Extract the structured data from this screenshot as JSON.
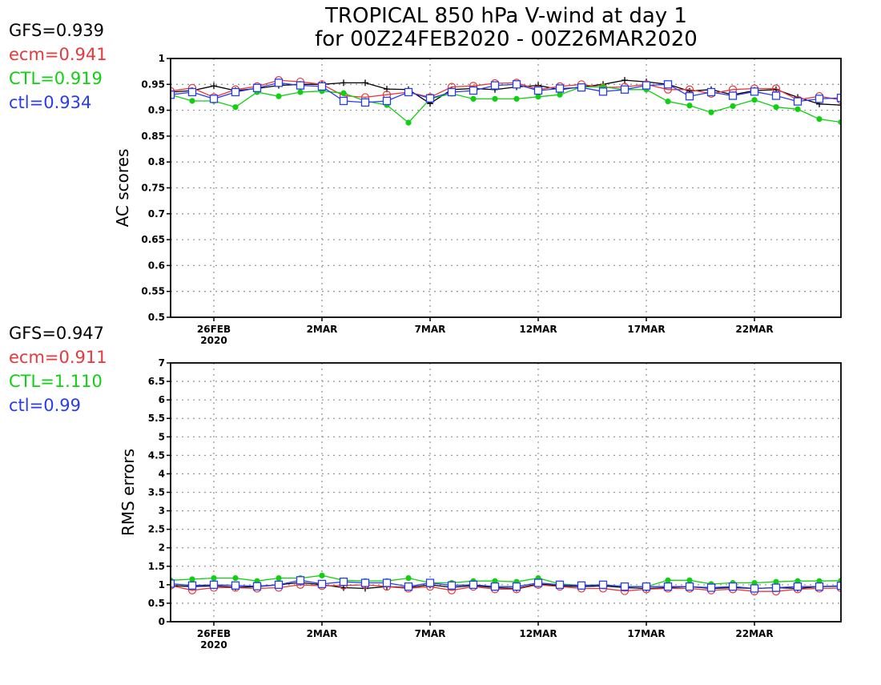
{
  "title_line1": "TROPICAL 850 hPa V-wind at day 1",
  "title_line2": "for 00Z24FEB2020 - 00Z26MAR2020",
  "colors": {
    "GFS": "#000000",
    "ecm": "#e8383b",
    "CTL": "#10d010",
    "ctl": "#2a3cf0"
  },
  "chart_data": [
    {
      "type": "line",
      "ylabel": "AC scores",
      "ylim": [
        0.5,
        1
      ],
      "yticks": [
        "0.5",
        "0.55",
        "0.6",
        "0.65",
        "0.7",
        "0.75",
        "0.8",
        "0.85",
        "0.9",
        "0.95",
        "1"
      ],
      "xlim": [
        "2020-02-24",
        "2020-03-26"
      ],
      "xticks": [
        {
          "date": "2020-02-26",
          "label": "26FEB",
          "year": "2020"
        },
        {
          "date": "2020-03-02",
          "label": "2MAR",
          "year": ""
        },
        {
          "date": "2020-03-07",
          "label": "7MAR",
          "year": ""
        },
        {
          "date": "2020-03-12",
          "label": "12MAR",
          "year": ""
        },
        {
          "date": "2020-03-17",
          "label": "17MAR",
          "year": ""
        },
        {
          "date": "2020-03-22",
          "label": "22MAR",
          "year": ""
        }
      ],
      "grid": true,
      "scores": [
        {
          "name": "GFS",
          "label": "GFS=0.939"
        },
        {
          "name": "ecm",
          "label": "ecm=0.941"
        },
        {
          "name": "CTL",
          "label": "CTL=0.919"
        },
        {
          "name": "ctl",
          "label": "ctl=0.934"
        }
      ],
      "x": [
        "2020-02-24",
        "2020-02-25",
        "2020-02-26",
        "2020-02-27",
        "2020-02-28",
        "2020-02-29",
        "2020-03-01",
        "2020-03-02",
        "2020-03-03",
        "2020-03-04",
        "2020-03-05",
        "2020-03-06",
        "2020-03-07",
        "2020-03-08",
        "2020-03-09",
        "2020-03-10",
        "2020-03-11",
        "2020-03-12",
        "2020-03-13",
        "2020-03-14",
        "2020-03-15",
        "2020-03-16",
        "2020-03-17",
        "2020-03-18",
        "2020-03-19",
        "2020-03-20",
        "2020-03-21",
        "2020-03-22",
        "2020-03-23",
        "2020-03-24",
        "2020-03-25",
        "2020-03-26"
      ],
      "series": [
        {
          "name": "GFS",
          "marker": "plus",
          "values": [
            0.935,
            0.938,
            0.947,
            0.938,
            0.942,
            0.948,
            0.95,
            0.95,
            0.953,
            0.953,
            0.941,
            0.94,
            0.913,
            0.94,
            0.942,
            0.94,
            0.945,
            0.948,
            0.94,
            0.945,
            0.95,
            0.958,
            0.955,
            0.95,
            0.937,
            0.94,
            0.93,
            0.938,
            0.94,
            0.925,
            0.912,
            0.91
          ]
        },
        {
          "name": "ecm",
          "marker": "circle",
          "values": [
            0.937,
            0.943,
            0.925,
            0.94,
            0.946,
            0.958,
            0.955,
            0.95,
            0.928,
            0.925,
            0.93,
            0.935,
            0.925,
            0.945,
            0.947,
            0.952,
            0.953,
            0.94,
            0.946,
            0.95,
            0.944,
            0.945,
            0.95,
            0.94,
            0.94,
            0.932,
            0.94,
            0.942,
            0.942,
            0.92,
            0.927,
            0.92
          ]
        },
        {
          "name": "CTL",
          "marker": "dot",
          "values": [
            0.93,
            0.918,
            0.918,
            0.906,
            0.935,
            0.927,
            0.935,
            0.937,
            0.933,
            0.918,
            0.91,
            0.876,
            0.922,
            0.932,
            0.922,
            0.922,
            0.922,
            0.926,
            0.93,
            0.945,
            0.945,
            0.94,
            0.94,
            0.917,
            0.909,
            0.896,
            0.908,
            0.92,
            0.906,
            0.902,
            0.883,
            0.877
          ]
        },
        {
          "name": "ctl",
          "marker": "square",
          "values": [
            0.93,
            0.935,
            0.922,
            0.935,
            0.943,
            0.953,
            0.948,
            0.946,
            0.918,
            0.915,
            0.918,
            0.935,
            0.923,
            0.935,
            0.938,
            0.948,
            0.95,
            0.938,
            0.942,
            0.944,
            0.936,
            0.94,
            0.948,
            0.95,
            0.927,
            0.935,
            0.928,
            0.936,
            0.928,
            0.917,
            0.922,
            0.924
          ]
        }
      ]
    },
    {
      "type": "line",
      "ylabel": "RMS errors",
      "ylim": [
        0,
        7
      ],
      "yticks": [
        "0",
        "0.5",
        "1",
        "1.5",
        "2",
        "2.5",
        "3",
        "3.5",
        "4",
        "4.5",
        "5",
        "5.5",
        "6",
        "6.5",
        "7"
      ],
      "xlim": [
        "2020-02-24",
        "2020-03-26"
      ],
      "xticks": [
        {
          "date": "2020-02-26",
          "label": "26FEB",
          "year": "2020"
        },
        {
          "date": "2020-03-02",
          "label": "2MAR",
          "year": ""
        },
        {
          "date": "2020-03-07",
          "label": "7MAR",
          "year": ""
        },
        {
          "date": "2020-03-12",
          "label": "12MAR",
          "year": ""
        },
        {
          "date": "2020-03-17",
          "label": "17MAR",
          "year": ""
        },
        {
          "date": "2020-03-22",
          "label": "22MAR",
          "year": ""
        }
      ],
      "grid": true,
      "scores": [
        {
          "name": "GFS",
          "label": "GFS=0.947"
        },
        {
          "name": "ecm",
          "label": "ecm=0.911"
        },
        {
          "name": "CTL",
          "label": "CTL=1.110"
        },
        {
          "name": "ctl",
          "label": "ctl=0.99"
        }
      ],
      "x": [
        "2020-02-24",
        "2020-02-25",
        "2020-02-26",
        "2020-02-27",
        "2020-02-28",
        "2020-02-29",
        "2020-03-01",
        "2020-03-02",
        "2020-03-03",
        "2020-03-04",
        "2020-03-05",
        "2020-03-06",
        "2020-03-07",
        "2020-03-08",
        "2020-03-09",
        "2020-03-10",
        "2020-03-11",
        "2020-03-12",
        "2020-03-13",
        "2020-03-14",
        "2020-03-15",
        "2020-03-16",
        "2020-03-17",
        "2020-03-18",
        "2020-03-19",
        "2020-03-20",
        "2020-03-21",
        "2020-03-22",
        "2020-03-23",
        "2020-03-24",
        "2020-03-25",
        "2020-03-26"
      ],
      "series": [
        {
          "name": "GFS",
          "marker": "plus",
          "values": [
            0.98,
            0.95,
            0.97,
            0.93,
            0.95,
            1.0,
            1.06,
            1.0,
            0.92,
            0.9,
            0.95,
            0.92,
            1.0,
            0.93,
            0.98,
            0.92,
            0.9,
            1.02,
            0.97,
            0.95,
            0.97,
            0.92,
            0.9,
            0.92,
            0.95,
            0.9,
            0.92,
            0.9,
            0.92,
            0.9,
            0.95,
            0.96
          ]
        },
        {
          "name": "ecm",
          "marker": "circle",
          "values": [
            0.98,
            0.85,
            0.92,
            0.92,
            0.9,
            0.92,
            1.0,
            0.97,
            0.98,
            1.0,
            0.95,
            0.9,
            0.95,
            0.85,
            0.95,
            0.88,
            0.88,
            1.0,
            0.95,
            0.9,
            0.9,
            0.83,
            0.88,
            0.9,
            0.9,
            0.85,
            0.88,
            0.82,
            0.82,
            0.88,
            0.9,
            0.91
          ]
        },
        {
          "name": "CTL",
          "marker": "dot",
          "values": [
            1.12,
            1.15,
            1.18,
            1.18,
            1.1,
            1.18,
            1.18,
            1.25,
            1.12,
            1.1,
            1.1,
            1.18,
            1.05,
            1.05,
            1.1,
            1.1,
            1.08,
            1.18,
            1.02,
            0.98,
            1.0,
            0.95,
            0.95,
            1.12,
            1.12,
            1.02,
            1.05,
            1.05,
            1.08,
            1.1,
            1.1,
            1.11
          ]
        },
        {
          "name": "ctl",
          "marker": "square",
          "values": [
            1.03,
            0.98,
            1.0,
            0.98,
            0.96,
            1.0,
            1.12,
            1.02,
            1.08,
            1.05,
            1.05,
            0.95,
            1.05,
            0.98,
            1.0,
            0.95,
            0.95,
            1.05,
            1.0,
            0.98,
            1.0,
            0.95,
            0.95,
            0.95,
            0.95,
            0.92,
            0.95,
            0.9,
            0.92,
            0.95,
            0.95,
            0.97
          ]
        }
      ]
    }
  ]
}
